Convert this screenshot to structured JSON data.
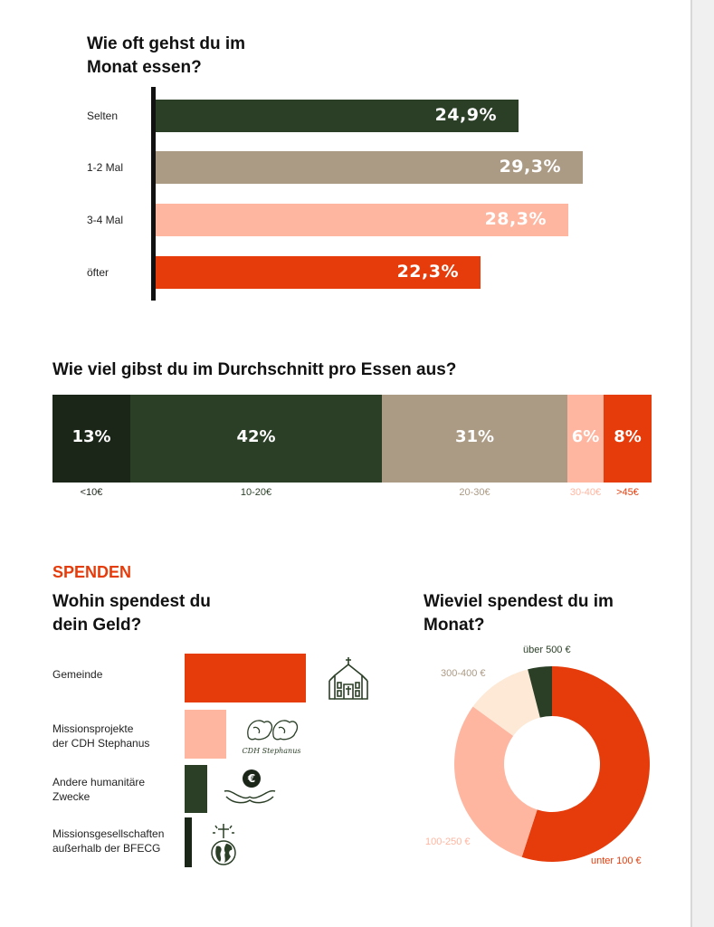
{
  "colors": {
    "dark_green": "#2b3f27",
    "darkest": "#1b2619",
    "taupe": "#ab9a84",
    "salmon": "#ffb6a0",
    "orange": "#e63c0b",
    "cream": "#fde9d6"
  },
  "chart_data": [
    {
      "type": "bar",
      "orientation": "horizontal",
      "title": "Wie oft gehst du im Monat essen?",
      "categories": [
        "Selten",
        "1-2 Mal",
        "3-4 Mal",
        "öfter"
      ],
      "values": [
        24.9,
        29.3,
        28.3,
        22.3
      ],
      "value_labels": [
        "24,9%",
        "29,3%",
        "28,3%",
        "22,3%"
      ],
      "colors": [
        "#2b3f27",
        "#ab9a84",
        "#ffb6a0",
        "#e63c0b"
      ]
    },
    {
      "type": "bar",
      "orientation": "stacked-horizontal",
      "title": "Wie viel gibst du im Durchschnitt pro Essen aus?",
      "categories": [
        "<10€",
        "10-20€",
        "20-30€",
        "30-40€",
        ">45€"
      ],
      "values": [
        13,
        42,
        31,
        6,
        8
      ],
      "value_labels": [
        "13%",
        "42%",
        "31%",
        "6%",
        "8%"
      ],
      "colors": [
        "#1b2619",
        "#2b3f27",
        "#ab9a84",
        "#ffb6a0",
        "#e63c0b"
      ],
      "label_colors": [
        "#1b2619",
        "#2b3f27",
        "#ab9a84",
        "#ffb6a0",
        "#e63c0b"
      ]
    },
    {
      "type": "bar",
      "orientation": "horizontal",
      "title": "Wohin spendest du dein Geld?",
      "categories": [
        "Gemeinde",
        "Missionsprojekte der CDH Stephanus",
        "Andere humanitäre Zwecke",
        "Missionsgesellschaften außerhalb der BFECG"
      ],
      "values": [
        100,
        34,
        19,
        6
      ],
      "colors": [
        "#e63c0b",
        "#ffb6a0",
        "#2b3f27",
        "#1b2619"
      ],
      "icons": [
        "church-icon",
        "cdh-stephanus-logo-icon",
        "hands-euro-icon",
        "globe-cross-icon"
      ]
    },
    {
      "type": "pie",
      "variant": "donut",
      "title": "Wieviel spendest du im Monat?",
      "categories": [
        "unter 100 €",
        "100-250 €",
        "300-400 €",
        "über 500 €"
      ],
      "values": [
        55,
        30,
        11,
        4
      ],
      "colors": [
        "#e63c0b",
        "#ffb6a0",
        "#fde9d6",
        "#2b3f27"
      ],
      "label_colors": [
        "#e63c0b",
        "#ffb6a0",
        "#ab9a84",
        "#2b3f27"
      ]
    }
  ],
  "page": {
    "title1_line1": "Wie oft gehst du im",
    "title1_line2": "Monat essen?",
    "title2": "Wie viel gibst du im Durchschnitt pro Essen aus?",
    "section": "SPENDEN",
    "title3_line1": "Wohin spendest du",
    "title3_line2": "dein Geld?",
    "title4_line1": "Wieviel spendest du im",
    "title4_line2": "Monat?",
    "donate_labels": [
      [
        "Gemeinde"
      ],
      [
        "Missionsprojekte",
        "der CDH Stephanus"
      ],
      [
        "Andere humanitäre",
        "Zwecke"
      ],
      [
        "Missionsgesellschaften",
        "außerhalb der BFECG"
      ]
    ],
    "cdh_logo_text": "CDH Stephanus"
  }
}
